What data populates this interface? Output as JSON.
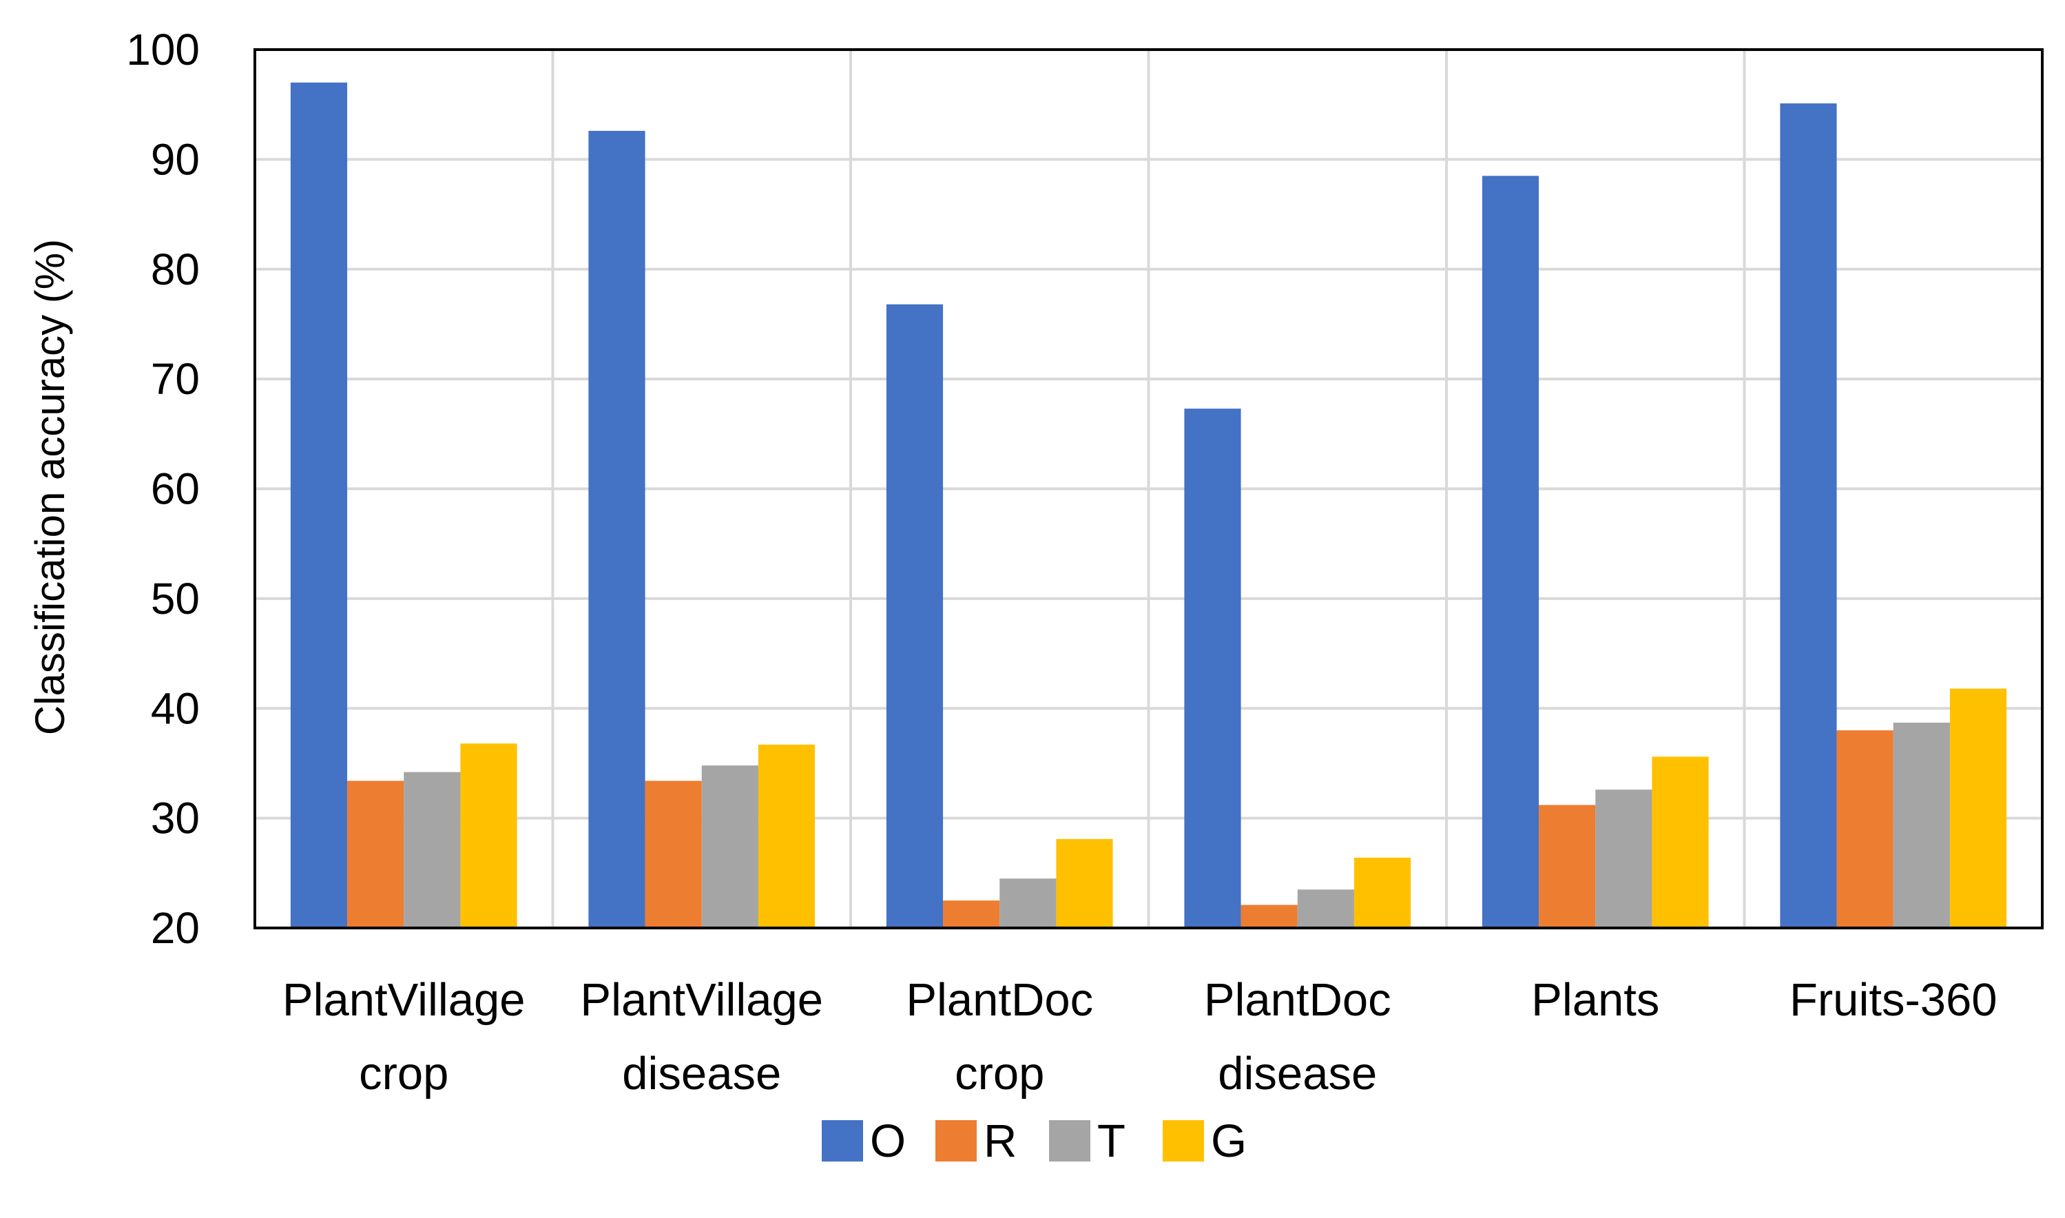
{
  "chart_data": {
    "type": "bar",
    "title": "",
    "xlabel": "",
    "ylabel": "Classification accuracy (%)",
    "ylim": [
      20,
      100
    ],
    "yticks": [
      20,
      30,
      40,
      50,
      60,
      70,
      80,
      90,
      100
    ],
    "grid": true,
    "legend_position": "bottom-center",
    "categories": [
      [
        "PlantVillage",
        "crop"
      ],
      [
        "PlantVillage",
        "disease"
      ],
      [
        "PlantDoc",
        "crop"
      ],
      [
        "PlantDoc",
        "disease"
      ],
      [
        "Plants"
      ],
      [
        "Fruits-360"
      ]
    ],
    "series": [
      {
        "name": "O",
        "color": "#4472C4",
        "values": [
          97.0,
          92.6,
          76.8,
          67.3,
          88.5,
          95.1
        ]
      },
      {
        "name": "R",
        "color": "#ED7D31",
        "values": [
          33.4,
          33.4,
          22.5,
          22.1,
          31.2,
          38.0
        ]
      },
      {
        "name": "T",
        "color": "#A5A5A5",
        "values": [
          34.2,
          34.8,
          24.5,
          23.5,
          32.6,
          38.7
        ]
      },
      {
        "name": "G",
        "color": "#FFC000",
        "values": [
          36.8,
          36.7,
          28.1,
          26.4,
          35.6,
          41.8
        ]
      }
    ],
    "colors": {
      "grid": "#D9D9D9",
      "axis": "#000000"
    }
  }
}
